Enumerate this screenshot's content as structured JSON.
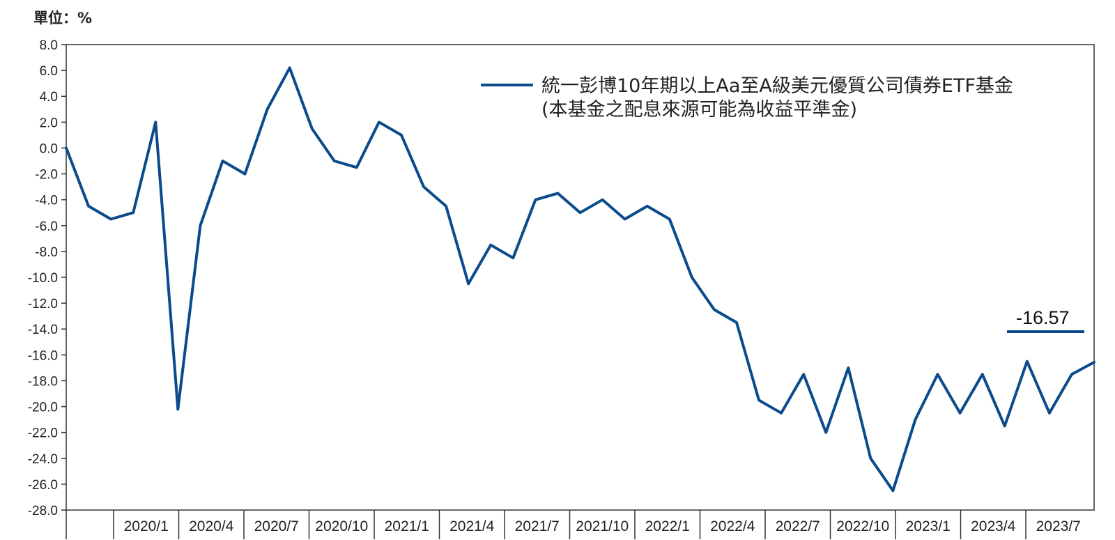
{
  "unit_label": "單位：%",
  "chart_data": {
    "type": "line",
    "ylim": [
      -28,
      8
    ],
    "yticks": [
      "8.0",
      "6.0",
      "4.0",
      "2.0",
      "0.0",
      "-2.0",
      "-4.0",
      "-6.0",
      "-8.0",
      "-10.0",
      "-12.0",
      "-14.0",
      "-16.0",
      "-18.0",
      "-20.0",
      "-22.0",
      "-24.0",
      "-26.0",
      "-28.0"
    ],
    "xticks": [
      "2020/1",
      "2020/4",
      "2020/7",
      "2020/10",
      "2021/1",
      "2021/4",
      "2021/7",
      "2021/10",
      "2022/1",
      "2022/4",
      "2022/7",
      "2022/10",
      "2023/1",
      "2023/4",
      "2023/7"
    ],
    "grid": false,
    "legend": {
      "position": "top-right",
      "line1": "統一彭博10年期以上Aa至A級美元優質公司債券ETF基金",
      "line2": "(本基金之配息來源可能為收益平準金)"
    },
    "annotation": {
      "text": "-16.57",
      "value": -16.57
    },
    "series": [
      {
        "color": "#0b4a8b",
        "x": [
          "2019/11",
          "2019/12",
          "2020/1",
          "2020/2",
          "2020/3 early",
          "2020/3 low",
          "2020/4",
          "2020/5",
          "2020/6",
          "2020/7",
          "2020/8 high",
          "2020/9",
          "2020/10",
          "2020/11",
          "2020/12",
          "2021/1",
          "2021/2",
          "2021/3",
          "2021/4",
          "2021/5",
          "2021/6",
          "2021/7",
          "2021/8",
          "2021/9",
          "2021/10",
          "2021/11",
          "2021/12",
          "2022/1",
          "2022/2",
          "2022/3",
          "2022/4",
          "2022/5",
          "2022/6",
          "2022/7",
          "2022/8",
          "2022/9",
          "2022/10",
          "2022/11",
          "2022/12",
          "2023/1",
          "2023/2",
          "2023/3",
          "2023/4",
          "2023/5",
          "2023/6",
          "2023/7",
          "2023/8"
        ],
        "values": [
          0.0,
          -4.5,
          -5.5,
          -5.0,
          2.0,
          -20.2,
          -6.0,
          -1.0,
          -2.0,
          3.0,
          6.2,
          1.5,
          -1.0,
          -1.5,
          2.0,
          1.0,
          -3.0,
          -4.5,
          -10.5,
          -7.5,
          -8.5,
          -4.0,
          -3.5,
          -5.0,
          -4.0,
          -5.5,
          -4.5,
          -5.5,
          -10.0,
          -12.5,
          -13.5,
          -19.5,
          -20.5,
          -17.5,
          -22.0,
          -17.0,
          -24.0,
          -26.5,
          -21.0,
          -17.5,
          -20.5,
          -17.5,
          -21.5,
          -16.5,
          -20.5,
          -17.5,
          -16.57
        ]
      }
    ]
  }
}
